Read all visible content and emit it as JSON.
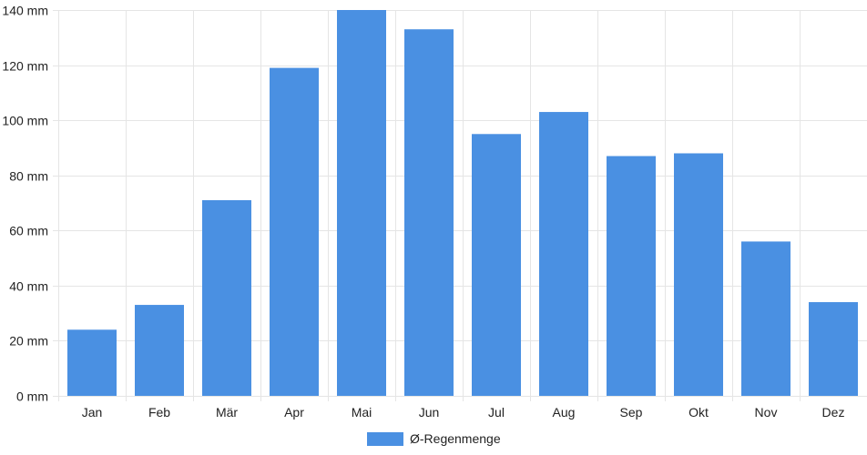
{
  "chart_data": {
    "type": "bar",
    "categories": [
      "Jan",
      "Feb",
      "Mär",
      "Apr",
      "Mai",
      "Jun",
      "Jul",
      "Aug",
      "Sep",
      "Okt",
      "Nov",
      "Dez"
    ],
    "series": [
      {
        "name": "Ø-Regenmenge",
        "values": [
          24,
          33,
          71,
          119,
          140,
          133,
          95,
          103,
          87,
          88,
          56,
          34
        ],
        "color": "#4a90e2"
      }
    ],
    "y_ticks": [
      "0 mm",
      "20 mm",
      "40 mm",
      "60 mm",
      "80 mm",
      "100 mm",
      "120 mm",
      "140 mm"
    ],
    "ylim": [
      0,
      140
    ],
    "y_step": 20,
    "grid": true,
    "legend_position": "bottom-center",
    "gridline_color": "#e5e5e5"
  }
}
